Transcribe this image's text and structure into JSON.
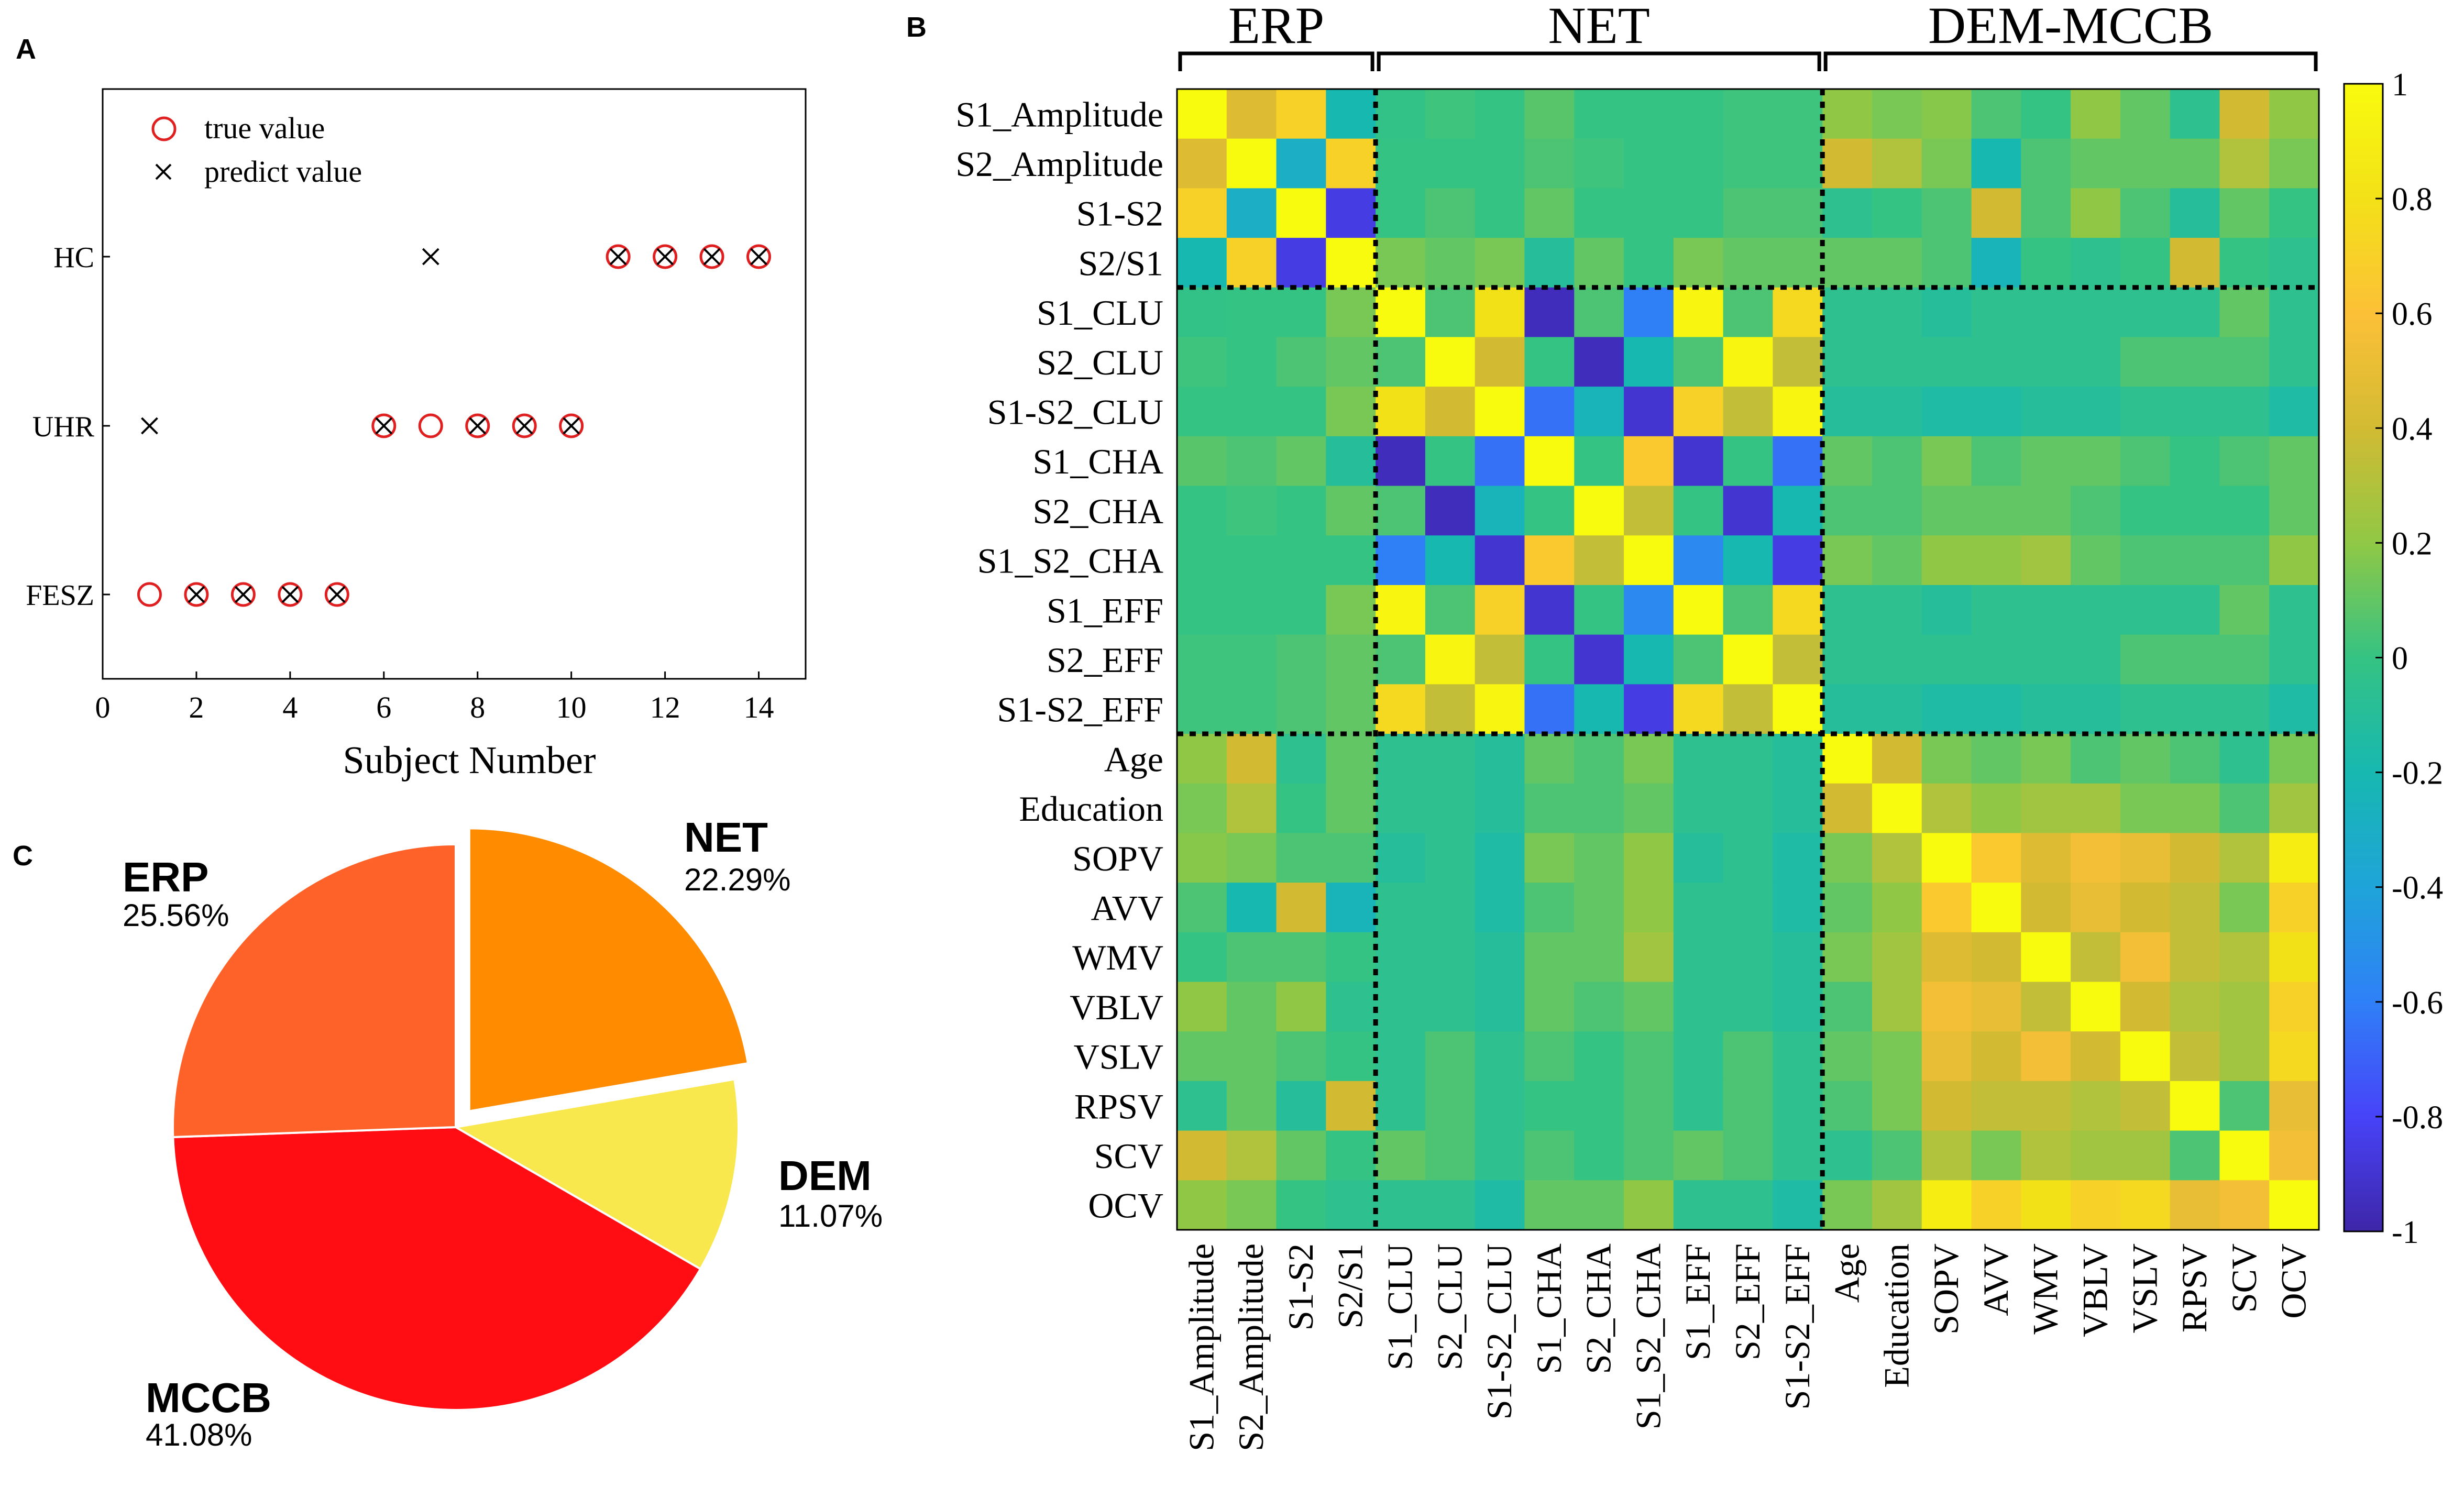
{
  "panels": {
    "a": "A",
    "b": "B",
    "c": "C"
  },
  "chart_data": [
    {
      "type": "scatter",
      "panel": "A",
      "xlabel": "Subject Number",
      "ylabel": "",
      "xlim": [
        0,
        15
      ],
      "xticks": [
        0,
        2,
        4,
        6,
        8,
        10,
        12,
        14
      ],
      "categories": [
        "FESZ",
        "UHR",
        "HC"
      ],
      "legend": {
        "position": "top-left",
        "true_label": "true value",
        "predict_label": "predict value"
      },
      "true_values": [
        {
          "x": 1,
          "y": "FESZ"
        },
        {
          "x": 2,
          "y": "FESZ"
        },
        {
          "x": 3,
          "y": "FESZ"
        },
        {
          "x": 4,
          "y": "FESZ"
        },
        {
          "x": 5,
          "y": "FESZ"
        },
        {
          "x": 6,
          "y": "UHR"
        },
        {
          "x": 7,
          "y": "UHR"
        },
        {
          "x": 8,
          "y": "UHR"
        },
        {
          "x": 9,
          "y": "UHR"
        },
        {
          "x": 10,
          "y": "UHR"
        },
        {
          "x": 11,
          "y": "HC"
        },
        {
          "x": 12,
          "y": "HC"
        },
        {
          "x": 13,
          "y": "HC"
        },
        {
          "x": 14,
          "y": "HC"
        }
      ],
      "predicted_values": [
        {
          "x": 1,
          "y": "UHR"
        },
        {
          "x": 2,
          "y": "FESZ"
        },
        {
          "x": 3,
          "y": "FESZ"
        },
        {
          "x": 4,
          "y": "FESZ"
        },
        {
          "x": 5,
          "y": "FESZ"
        },
        {
          "x": 6,
          "y": "UHR"
        },
        {
          "x": 7,
          "y": "HC"
        },
        {
          "x": 8,
          "y": "UHR"
        },
        {
          "x": 9,
          "y": "UHR"
        },
        {
          "x": 10,
          "y": "UHR"
        },
        {
          "x": 11,
          "y": "HC"
        },
        {
          "x": 12,
          "y": "HC"
        },
        {
          "x": 13,
          "y": "HC"
        },
        {
          "x": 14,
          "y": "HC"
        }
      ],
      "colors": {
        "true": "#e02020",
        "predict": "#000000"
      }
    },
    {
      "type": "heatmap",
      "panel": "B",
      "labels": [
        "S1_Amplitude",
        "S2_Amplitude",
        "S1-S2",
        "S2/S1",
        "S1_CLU",
        "S2_CLU",
        "S1-S2_CLU",
        "S1_CHA",
        "S2_CHA",
        "S1_S2_CHA",
        "S1_EFF",
        "S2_EFF",
        "S1-S2_EFF",
        "Age",
        "Education",
        "SOPV",
        "AVV",
        "WMV",
        "VBLV",
        "VSLV",
        "RPSV",
        "SCV",
        "OCV"
      ],
      "groups": [
        {
          "name": "ERP",
          "start": 0,
          "end": 3
        },
        {
          "name": "NET",
          "start": 4,
          "end": 12
        },
        {
          "name": "DEM-MCCB",
          "start": 13,
          "end": 22
        }
      ],
      "colorbar": {
        "min": -1,
        "max": 1,
        "ticks": [
          "1",
          "0.8",
          "0.6",
          "0.4",
          "0.2",
          "0",
          "-0.2",
          "-0.4",
          "-0.6",
          "-0.8",
          "-1"
        ]
      },
      "colormap": [
        "#3e26a8",
        "#4743f8",
        "#2f80f7",
        "#1fa4d9",
        "#17b8b0",
        "#35c383",
        "#90c845",
        "#d2bb33",
        "#fcc037",
        "#f3e118",
        "#f9fb0e"
      ],
      "values": [
        [
          1.0,
          0.45,
          0.7,
          -0.2,
          -0.02,
          0.02,
          0.0,
          0.08,
          0.0,
          0.0,
          0.0,
          0.02,
          0.02,
          0.2,
          0.15,
          0.18,
          0.05,
          0.0,
          0.2,
          0.1,
          -0.05,
          0.4,
          0.2
        ],
        [
          0.45,
          1.0,
          -0.3,
          0.7,
          0.0,
          0.0,
          0.0,
          0.05,
          0.02,
          0.0,
          0.0,
          0.02,
          0.02,
          0.4,
          0.3,
          0.15,
          -0.2,
          0.05,
          0.1,
          0.1,
          0.1,
          0.3,
          0.15
        ],
        [
          0.7,
          -0.3,
          1.0,
          -0.85,
          0.0,
          0.05,
          0.0,
          0.1,
          0.0,
          0.0,
          0.0,
          0.05,
          0.05,
          -0.05,
          0.0,
          0.05,
          0.4,
          0.05,
          0.2,
          0.05,
          -0.1,
          0.1,
          0.0
        ],
        [
          -0.2,
          0.7,
          -0.85,
          1.0,
          0.15,
          0.1,
          0.15,
          -0.1,
          0.1,
          0.0,
          0.15,
          0.1,
          0.1,
          0.1,
          0.1,
          0.05,
          -0.25,
          0.0,
          -0.05,
          0.0,
          0.4,
          0.0,
          -0.05
        ],
        [
          -0.02,
          0.0,
          0.0,
          0.15,
          1.0,
          0.05,
          0.8,
          -0.95,
          0.05,
          -0.6,
          0.95,
          0.05,
          0.75,
          -0.05,
          -0.05,
          -0.1,
          -0.05,
          -0.05,
          -0.05,
          -0.05,
          -0.05,
          0.1,
          -0.05
        ],
        [
          0.02,
          0.0,
          0.05,
          0.1,
          0.05,
          1.0,
          0.4,
          0.0,
          -0.95,
          -0.2,
          0.05,
          0.95,
          0.35,
          -0.05,
          -0.05,
          -0.05,
          -0.05,
          -0.05,
          -0.05,
          0.05,
          0.05,
          0.05,
          -0.05
        ],
        [
          0.0,
          0.0,
          0.0,
          0.15,
          0.8,
          0.4,
          1.0,
          -0.65,
          -0.25,
          -0.9,
          0.7,
          0.35,
          0.95,
          -0.1,
          -0.1,
          -0.15,
          -0.15,
          -0.1,
          -0.1,
          -0.05,
          -0.05,
          -0.05,
          -0.15
        ],
        [
          0.08,
          0.05,
          0.1,
          -0.1,
          -0.95,
          0.0,
          -0.65,
          1.0,
          0.0,
          0.65,
          -0.9,
          0.0,
          -0.65,
          0.1,
          0.05,
          0.15,
          0.05,
          0.1,
          0.1,
          0.05,
          0.0,
          0.05,
          0.1
        ],
        [
          0.0,
          0.02,
          0.0,
          0.1,
          0.05,
          -0.95,
          -0.25,
          0.0,
          1.0,
          0.35,
          0.0,
          -0.9,
          -0.2,
          0.05,
          0.05,
          0.1,
          0.1,
          0.1,
          0.05,
          0.0,
          0.0,
          0.0,
          0.1
        ],
        [
          0.0,
          0.0,
          0.0,
          0.0,
          -0.6,
          -0.2,
          -0.9,
          0.65,
          0.35,
          1.0,
          -0.55,
          -0.2,
          -0.85,
          0.15,
          0.1,
          0.2,
          0.2,
          0.25,
          0.1,
          0.05,
          0.05,
          0.05,
          0.2
        ],
        [
          0.0,
          0.0,
          0.0,
          0.15,
          0.95,
          0.05,
          0.7,
          -0.9,
          0.0,
          -0.55,
          1.0,
          0.05,
          0.75,
          -0.05,
          -0.05,
          -0.1,
          -0.05,
          -0.05,
          -0.05,
          -0.05,
          -0.05,
          0.1,
          -0.05
        ],
        [
          0.02,
          0.02,
          0.05,
          0.1,
          0.05,
          0.95,
          0.35,
          0.0,
          -0.9,
          -0.2,
          0.05,
          1.0,
          0.35,
          -0.05,
          -0.05,
          -0.05,
          -0.05,
          -0.05,
          -0.05,
          0.05,
          0.05,
          0.05,
          -0.05
        ],
        [
          0.02,
          0.02,
          0.05,
          0.1,
          0.75,
          0.35,
          0.95,
          -0.65,
          -0.2,
          -0.85,
          0.75,
          0.35,
          1.0,
          -0.1,
          -0.1,
          -0.15,
          -0.15,
          -0.1,
          -0.1,
          -0.05,
          -0.05,
          -0.05,
          -0.15
        ],
        [
          0.2,
          0.4,
          -0.05,
          0.1,
          -0.05,
          -0.05,
          -0.1,
          0.1,
          0.05,
          0.15,
          -0.05,
          -0.05,
          -0.1,
          1.0,
          0.4,
          0.15,
          0.1,
          0.15,
          0.05,
          0.1,
          0.05,
          -0.05,
          0.15
        ],
        [
          0.15,
          0.3,
          0.0,
          0.1,
          -0.05,
          -0.05,
          -0.1,
          0.05,
          0.05,
          0.1,
          -0.05,
          -0.05,
          -0.1,
          0.4,
          1.0,
          0.3,
          0.2,
          0.25,
          0.25,
          0.15,
          0.15,
          0.05,
          0.25
        ],
        [
          0.18,
          0.15,
          0.05,
          0.05,
          -0.1,
          -0.05,
          -0.15,
          0.15,
          0.1,
          0.2,
          -0.1,
          -0.05,
          -0.15,
          0.15,
          0.3,
          1.0,
          0.65,
          0.45,
          0.55,
          0.5,
          0.4,
          0.3,
          0.9
        ],
        [
          0.05,
          -0.2,
          0.4,
          -0.25,
          -0.05,
          -0.05,
          -0.15,
          0.05,
          0.1,
          0.2,
          -0.05,
          -0.05,
          -0.15,
          0.1,
          0.2,
          0.65,
          1.0,
          0.4,
          0.5,
          0.4,
          0.35,
          0.15,
          0.7
        ],
        [
          0.0,
          0.05,
          0.05,
          0.0,
          -0.05,
          -0.05,
          -0.1,
          0.1,
          0.1,
          0.25,
          -0.05,
          -0.05,
          -0.1,
          0.15,
          0.25,
          0.45,
          0.4,
          1.0,
          0.35,
          0.55,
          0.35,
          0.3,
          0.8
        ],
        [
          0.2,
          0.1,
          0.2,
          -0.05,
          -0.05,
          -0.05,
          -0.1,
          0.1,
          0.05,
          0.1,
          -0.05,
          -0.05,
          -0.1,
          0.05,
          0.25,
          0.55,
          0.5,
          0.35,
          1.0,
          0.4,
          0.3,
          0.25,
          0.7
        ],
        [
          0.1,
          0.1,
          0.05,
          0.0,
          -0.05,
          0.05,
          -0.05,
          0.05,
          0.0,
          0.05,
          -0.05,
          0.05,
          -0.05,
          0.1,
          0.15,
          0.5,
          0.4,
          0.55,
          0.4,
          1.0,
          0.35,
          0.25,
          0.75
        ],
        [
          -0.05,
          0.1,
          -0.1,
          0.4,
          -0.05,
          0.05,
          -0.05,
          0.0,
          0.0,
          0.05,
          -0.05,
          0.05,
          -0.05,
          0.05,
          0.15,
          0.4,
          0.35,
          0.35,
          0.3,
          0.35,
          1.0,
          0.05,
          0.5
        ],
        [
          0.4,
          0.3,
          0.1,
          0.0,
          0.1,
          0.05,
          -0.05,
          0.05,
          0.0,
          0.05,
          0.1,
          0.05,
          -0.05,
          -0.05,
          0.05,
          0.3,
          0.15,
          0.3,
          0.25,
          0.25,
          0.05,
          1.0,
          0.55
        ],
        [
          0.2,
          0.15,
          0.0,
          -0.05,
          -0.05,
          -0.05,
          -0.15,
          0.1,
          0.1,
          0.2,
          -0.05,
          -0.05,
          -0.15,
          0.15,
          0.25,
          0.9,
          0.7,
          0.8,
          0.7,
          0.75,
          0.5,
          0.55,
          1.0
        ]
      ]
    },
    {
      "type": "pie",
      "panel": "C",
      "slices": [
        {
          "label": "ERP",
          "value": 25.56,
          "text": "25.56%",
          "color": "#ff6229"
        },
        {
          "label": "NET",
          "value": 22.29,
          "text": "22.29%",
          "color": "#ff8c00",
          "exploded": true
        },
        {
          "label": "DEM",
          "value": 11.07,
          "text": "11.07%",
          "color": "#f9e74e"
        },
        {
          "label": "MCCB",
          "value": 41.08,
          "text": "41.08%",
          "color": "#ff0d12"
        }
      ]
    }
  ]
}
